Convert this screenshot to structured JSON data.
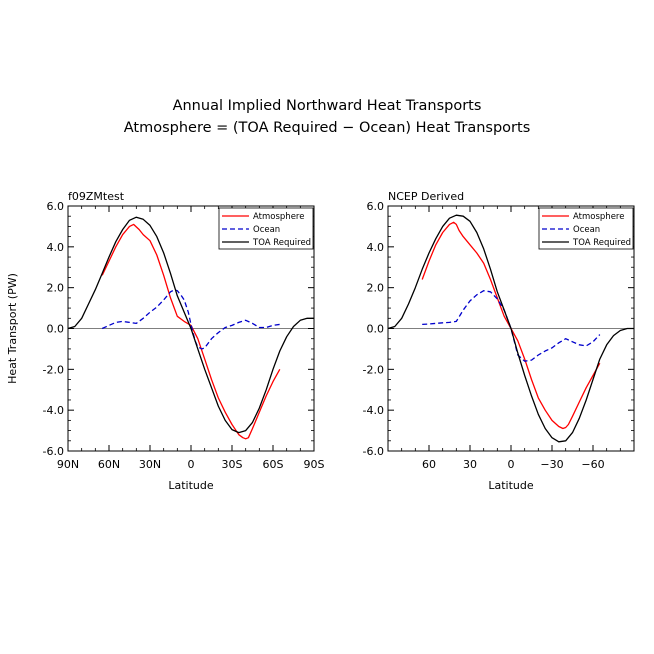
{
  "figure": {
    "title_line1": "Annual Implied Northward Heat Transports",
    "title_line2": "Atmosphere = (TOA Required − Ocean) Heat Transports"
  },
  "colors": {
    "atmosphere": "#ff0000",
    "ocean": "#0000cc",
    "toa": "#000000"
  },
  "chart_data": [
    {
      "type": "line",
      "subtitle": "f09ZMtest",
      "xlabel": "Latitude",
      "ylabel": "Heat Transport (PW)",
      "xlim": [
        90,
        -90
      ],
      "ylim": [
        -6,
        6
      ],
      "xticks": [
        90,
        60,
        30,
        0,
        -30,
        -60,
        -90
      ],
      "xtick_labels": [
        "90N",
        "60N",
        "30N",
        "0",
        "30S",
        "60S",
        "90S"
      ],
      "yticks": [
        6,
        4,
        2,
        0,
        -2,
        -4,
        -6
      ],
      "ytick_labels": [
        "6.0",
        "4.0",
        "2.0",
        "0.0",
        "-2.0",
        "-4.0",
        "-6.0"
      ],
      "grid": false,
      "legend_position": "top-right",
      "series": [
        {
          "name": "Atmosphere",
          "style": "solid",
          "x": [
            65,
            60,
            55,
            50,
            45,
            42,
            38,
            35,
            30,
            25,
            20,
            15,
            10,
            5,
            0,
            -5,
            -10,
            -15,
            -20,
            -25,
            -30,
            -35,
            -38,
            -40,
            -42,
            -45,
            -50,
            -55,
            -60,
            -65
          ],
          "y": [
            2.6,
            3.3,
            4.0,
            4.6,
            5.0,
            5.1,
            4.85,
            4.6,
            4.3,
            3.6,
            2.6,
            1.5,
            0.6,
            0.35,
            0.15,
            -0.5,
            -1.5,
            -2.5,
            -3.4,
            -4.1,
            -4.7,
            -5.2,
            -5.35,
            -5.4,
            -5.35,
            -4.9,
            -4.1,
            -3.3,
            -2.6,
            -2.0
          ]
        },
        {
          "name": "Ocean",
          "style": "dashed",
          "x": [
            65,
            60,
            55,
            50,
            45,
            40,
            35,
            30,
            25,
            20,
            15,
            12,
            10,
            7,
            5,
            2,
            0,
            -3,
            -5,
            -8,
            -10,
            -15,
            -20,
            -25,
            -30,
            -35,
            -40,
            -45,
            -50,
            -55,
            -60,
            -65
          ],
          "y": [
            0.0,
            0.15,
            0.3,
            0.35,
            0.3,
            0.25,
            0.5,
            0.8,
            1.05,
            1.4,
            1.8,
            1.9,
            1.85,
            1.6,
            1.4,
            0.8,
            0.2,
            -0.6,
            -0.9,
            -1.0,
            -0.95,
            -0.5,
            -0.2,
            0.05,
            0.15,
            0.3,
            0.4,
            0.25,
            0.05,
            0.05,
            0.15,
            0.2
          ]
        },
        {
          "name": "TOA Required",
          "style": "solid",
          "x": [
            90,
            85,
            80,
            75,
            70,
            65,
            60,
            55,
            50,
            45,
            40,
            35,
            30,
            25,
            20,
            15,
            10,
            5,
            0,
            -5,
            -10,
            -15,
            -20,
            -25,
            -30,
            -35,
            -40,
            -45,
            -50,
            -55,
            -60,
            -65,
            -70,
            -75,
            -80,
            -85,
            -90
          ],
          "y": [
            0.0,
            0.1,
            0.5,
            1.2,
            1.9,
            2.7,
            3.5,
            4.25,
            4.85,
            5.3,
            5.45,
            5.35,
            5.05,
            4.5,
            3.7,
            2.7,
            1.6,
            0.8,
            0.0,
            -1.0,
            -2.0,
            -2.9,
            -3.8,
            -4.5,
            -4.95,
            -5.1,
            -5.0,
            -4.6,
            -3.9,
            -3.0,
            -2.0,
            -1.1,
            -0.4,
            0.1,
            0.4,
            0.5,
            0.5
          ]
        }
      ]
    },
    {
      "type": "line",
      "subtitle": "NCEP Derived",
      "xlabel": "Latitude",
      "xlim": [
        90,
        -90
      ],
      "ylim": [
        -6,
        6
      ],
      "xticks": [
        60,
        30,
        0,
        -30,
        -60
      ],
      "xtick_labels": [
        "60",
        "30",
        "0",
        "−30",
        "−60"
      ],
      "yticks": [
        6,
        4,
        2,
        0,
        -2,
        -4,
        -6
      ],
      "ytick_labels": [
        "6.0",
        "4.0",
        "2.0",
        "0.0",
        "-2.0",
        "-4.0",
        "-6.0"
      ],
      "grid": false,
      "legend_position": "top-right",
      "series": [
        {
          "name": "Atmosphere",
          "style": "solid",
          "x": [
            65,
            60,
            55,
            50,
            45,
            42,
            40,
            38,
            35,
            30,
            25,
            20,
            15,
            10,
            5,
            0,
            -5,
            -10,
            -15,
            -20,
            -25,
            -30,
            -35,
            -38,
            -40,
            -42,
            -45,
            -50,
            -55,
            -60,
            -65
          ],
          "y": [
            2.4,
            3.3,
            4.1,
            4.7,
            5.1,
            5.2,
            5.1,
            4.8,
            4.5,
            4.1,
            3.7,
            3.2,
            2.4,
            1.5,
            0.6,
            0.0,
            -0.6,
            -1.5,
            -2.5,
            -3.4,
            -4.0,
            -4.5,
            -4.8,
            -4.9,
            -4.85,
            -4.7,
            -4.3,
            -3.6,
            -2.9,
            -2.3,
            -1.7
          ]
        },
        {
          "name": "Ocean",
          "style": "dashed",
          "x": [
            65,
            60,
            55,
            50,
            45,
            40,
            35,
            30,
            25,
            20,
            15,
            10,
            5,
            0,
            -5,
            -10,
            -15,
            -20,
            -25,
            -30,
            -35,
            -40,
            -45,
            -50,
            -55,
            -60,
            -65
          ],
          "y": [
            0.2,
            0.22,
            0.25,
            0.28,
            0.3,
            0.35,
            0.9,
            1.35,
            1.65,
            1.85,
            1.8,
            1.45,
            0.9,
            0.0,
            -1.3,
            -1.6,
            -1.55,
            -1.3,
            -1.1,
            -0.95,
            -0.7,
            -0.5,
            -0.65,
            -0.8,
            -0.85,
            -0.65,
            -0.3
          ]
        },
        {
          "name": "TOA Required",
          "style": "solid",
          "x": [
            90,
            85,
            80,
            75,
            70,
            65,
            60,
            55,
            50,
            45,
            40,
            35,
            30,
            25,
            20,
            15,
            10,
            5,
            0,
            -5,
            -10,
            -15,
            -20,
            -25,
            -30,
            -35,
            -40,
            -45,
            -50,
            -55,
            -60,
            -65,
            -70,
            -75,
            -80,
            -85,
            -90
          ],
          "y": [
            0.0,
            0.1,
            0.5,
            1.2,
            2.0,
            2.9,
            3.7,
            4.4,
            5.0,
            5.4,
            5.55,
            5.5,
            5.25,
            4.7,
            3.9,
            2.9,
            1.8,
            0.9,
            0.0,
            -1.2,
            -2.3,
            -3.3,
            -4.2,
            -4.9,
            -5.35,
            -5.55,
            -5.5,
            -5.1,
            -4.4,
            -3.5,
            -2.5,
            -1.5,
            -0.8,
            -0.35,
            -0.1,
            0.0,
            0.0
          ]
        }
      ]
    }
  ]
}
